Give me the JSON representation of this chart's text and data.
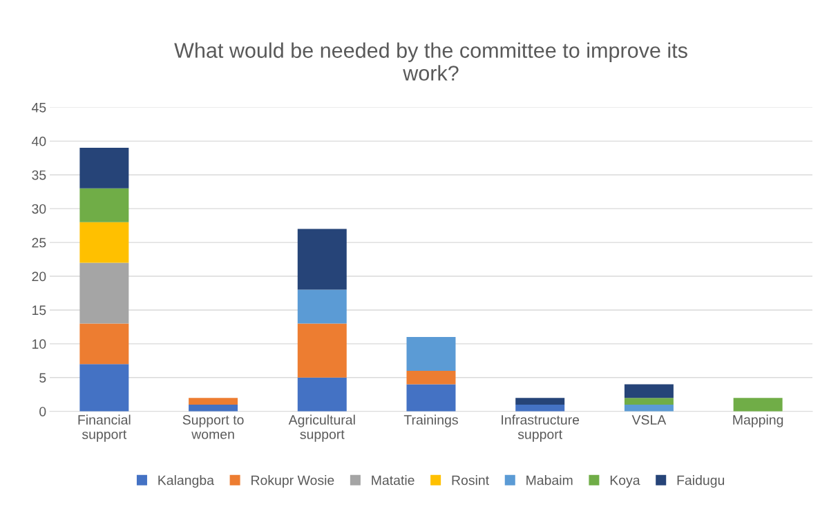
{
  "chart_data": {
    "type": "bar",
    "stacked": true,
    "title": "What would be needed by the committee to improve its\nwork?",
    "categories": [
      "Financial\nsupport",
      "Support to\nwomen",
      "Agricultural\nsupport",
      "Trainings",
      "Infrastructure\nsupport",
      "VSLA",
      "Mapping"
    ],
    "series": [
      {
        "name": "Kalangba",
        "color": "#4472c4",
        "values": [
          7,
          1,
          5,
          4,
          1,
          null,
          null
        ]
      },
      {
        "name": "Rokupr Wosie",
        "color": "#ed7d31",
        "values": [
          6,
          1,
          8,
          2,
          null,
          null,
          null
        ]
      },
      {
        "name": "Matatie",
        "color": "#a5a5a5",
        "values": [
          9,
          null,
          null,
          null,
          null,
          null,
          null
        ]
      },
      {
        "name": "Rosint",
        "color": "#ffc000",
        "values": [
          6,
          null,
          null,
          null,
          null,
          null,
          null
        ]
      },
      {
        "name": "Mabaim",
        "color": "#5b9bd5",
        "values": [
          null,
          null,
          5,
          5,
          null,
          1,
          null
        ]
      },
      {
        "name": "Koya",
        "color": "#70ad47",
        "values": [
          5,
          null,
          null,
          null,
          null,
          1,
          2
        ]
      },
      {
        "name": "Faidugu",
        "color": "#264478",
        "values": [
          6,
          null,
          9,
          null,
          1,
          2,
          null
        ]
      }
    ],
    "ylim": [
      0,
      45
    ],
    "yticks": [
      0,
      5,
      10,
      15,
      20,
      25,
      30,
      35,
      40,
      45
    ],
    "grid": "y",
    "legend": "bottom"
  }
}
